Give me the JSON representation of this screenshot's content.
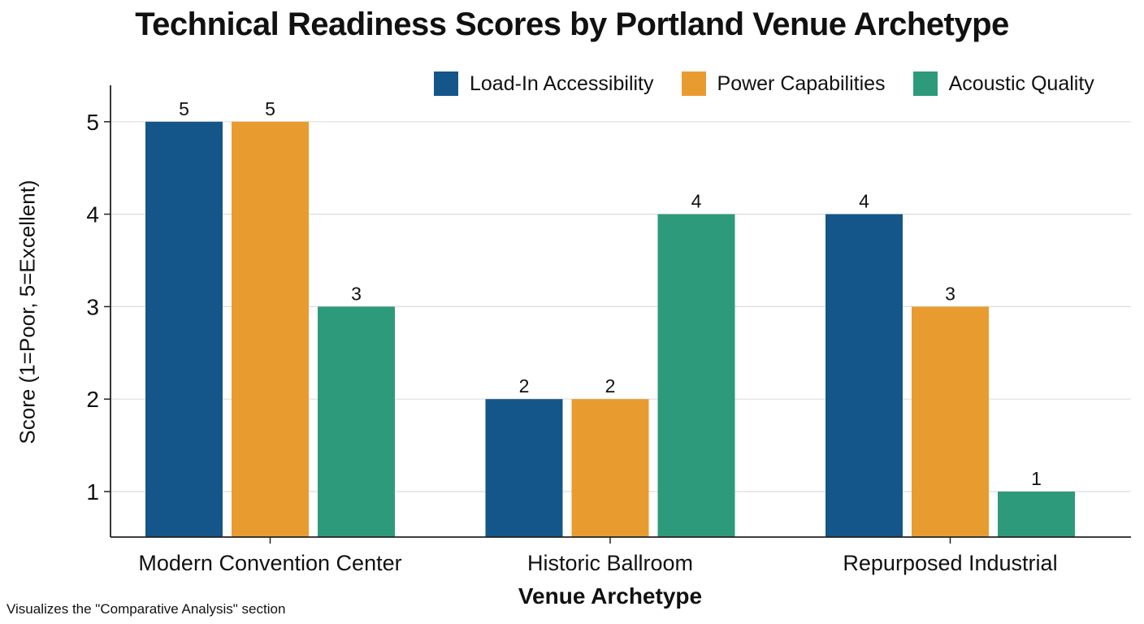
{
  "chart_data": {
    "type": "bar",
    "title": "Technical Readiness Scores by Portland Venue Archetype",
    "xlabel": "Venue Archetype",
    "ylabel": "Score (1=Poor, 5=Excellent)",
    "categories": [
      "Modern Convention Center",
      "Historic Ballroom",
      "Repurposed Industrial"
    ],
    "series": [
      {
        "name": "Load-In Accessibility",
        "color": "#14568a",
        "values": [
          5,
          2,
          4
        ]
      },
      {
        "name": "Power Capabilities",
        "color": "#e89c30",
        "values": [
          5,
          2,
          3
        ]
      },
      {
        "name": "Acoustic Quality",
        "color": "#2e9a7c",
        "values": [
          3,
          4,
          1
        ]
      }
    ],
    "yticks": [
      1,
      2,
      3,
      4,
      5
    ],
    "ylim": [
      0.5,
      5.4
    ],
    "grid": true,
    "legend_position": "top-right",
    "data_labels": true
  },
  "caption": "Visualizes the \"Comparative Analysis\" section"
}
